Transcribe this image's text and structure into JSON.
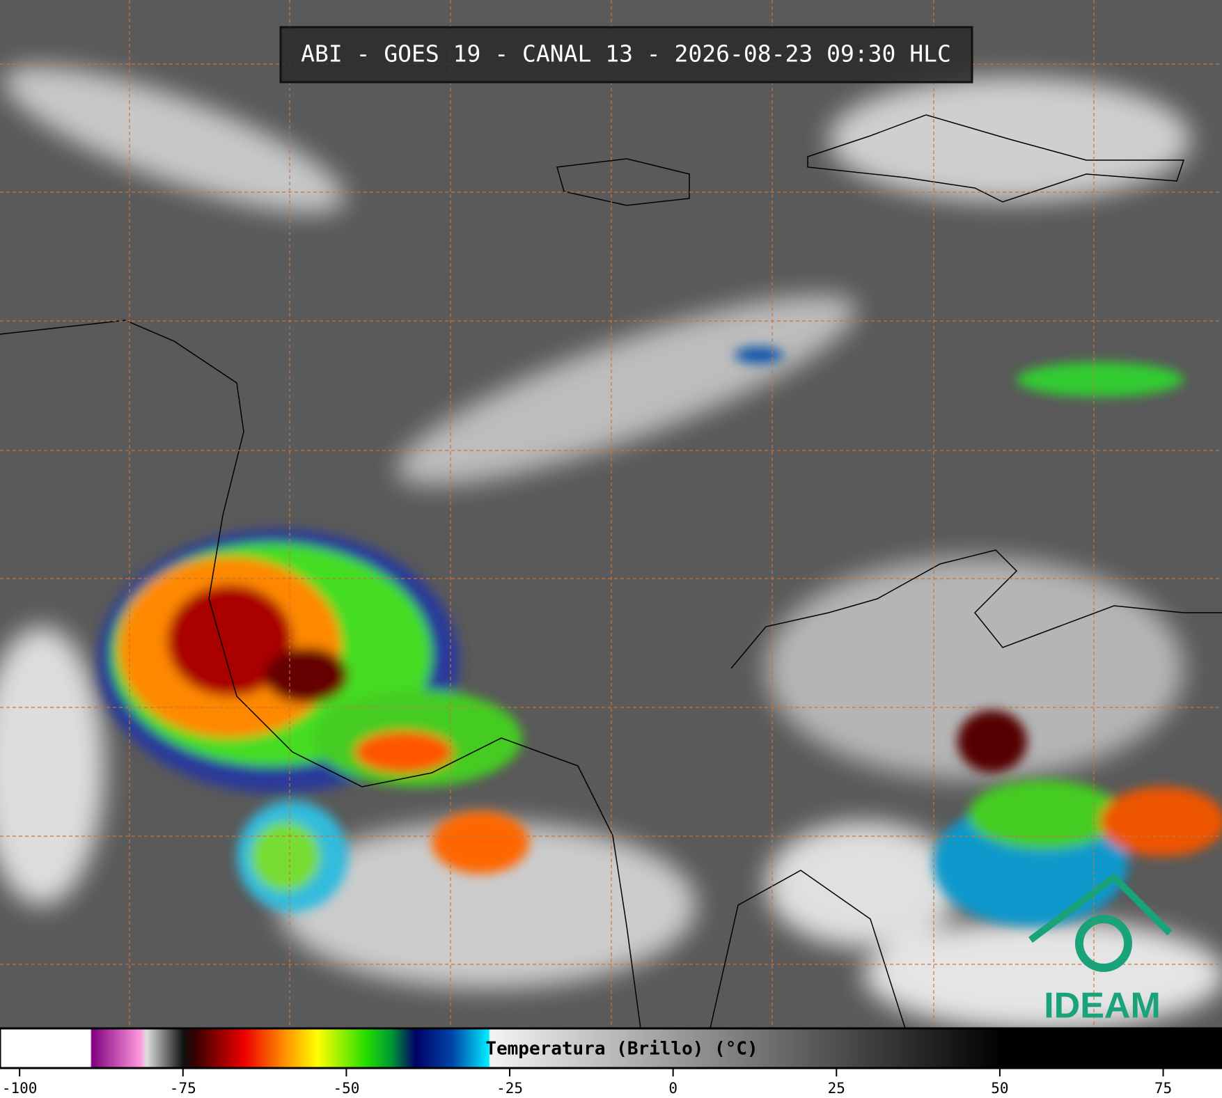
{
  "header": {
    "title": "ABI - GOES 19 - CANAL 13 - 2026-08-23 09:30 HLC"
  },
  "colorbar": {
    "label": "Temperatura (Brillo) (°C)",
    "range": [
      -103,
      84
    ],
    "ticks": [
      -100,
      -75,
      -50,
      -25,
      0,
      25,
      50,
      75
    ]
  },
  "logo": {
    "text": "IDEAM"
  }
}
